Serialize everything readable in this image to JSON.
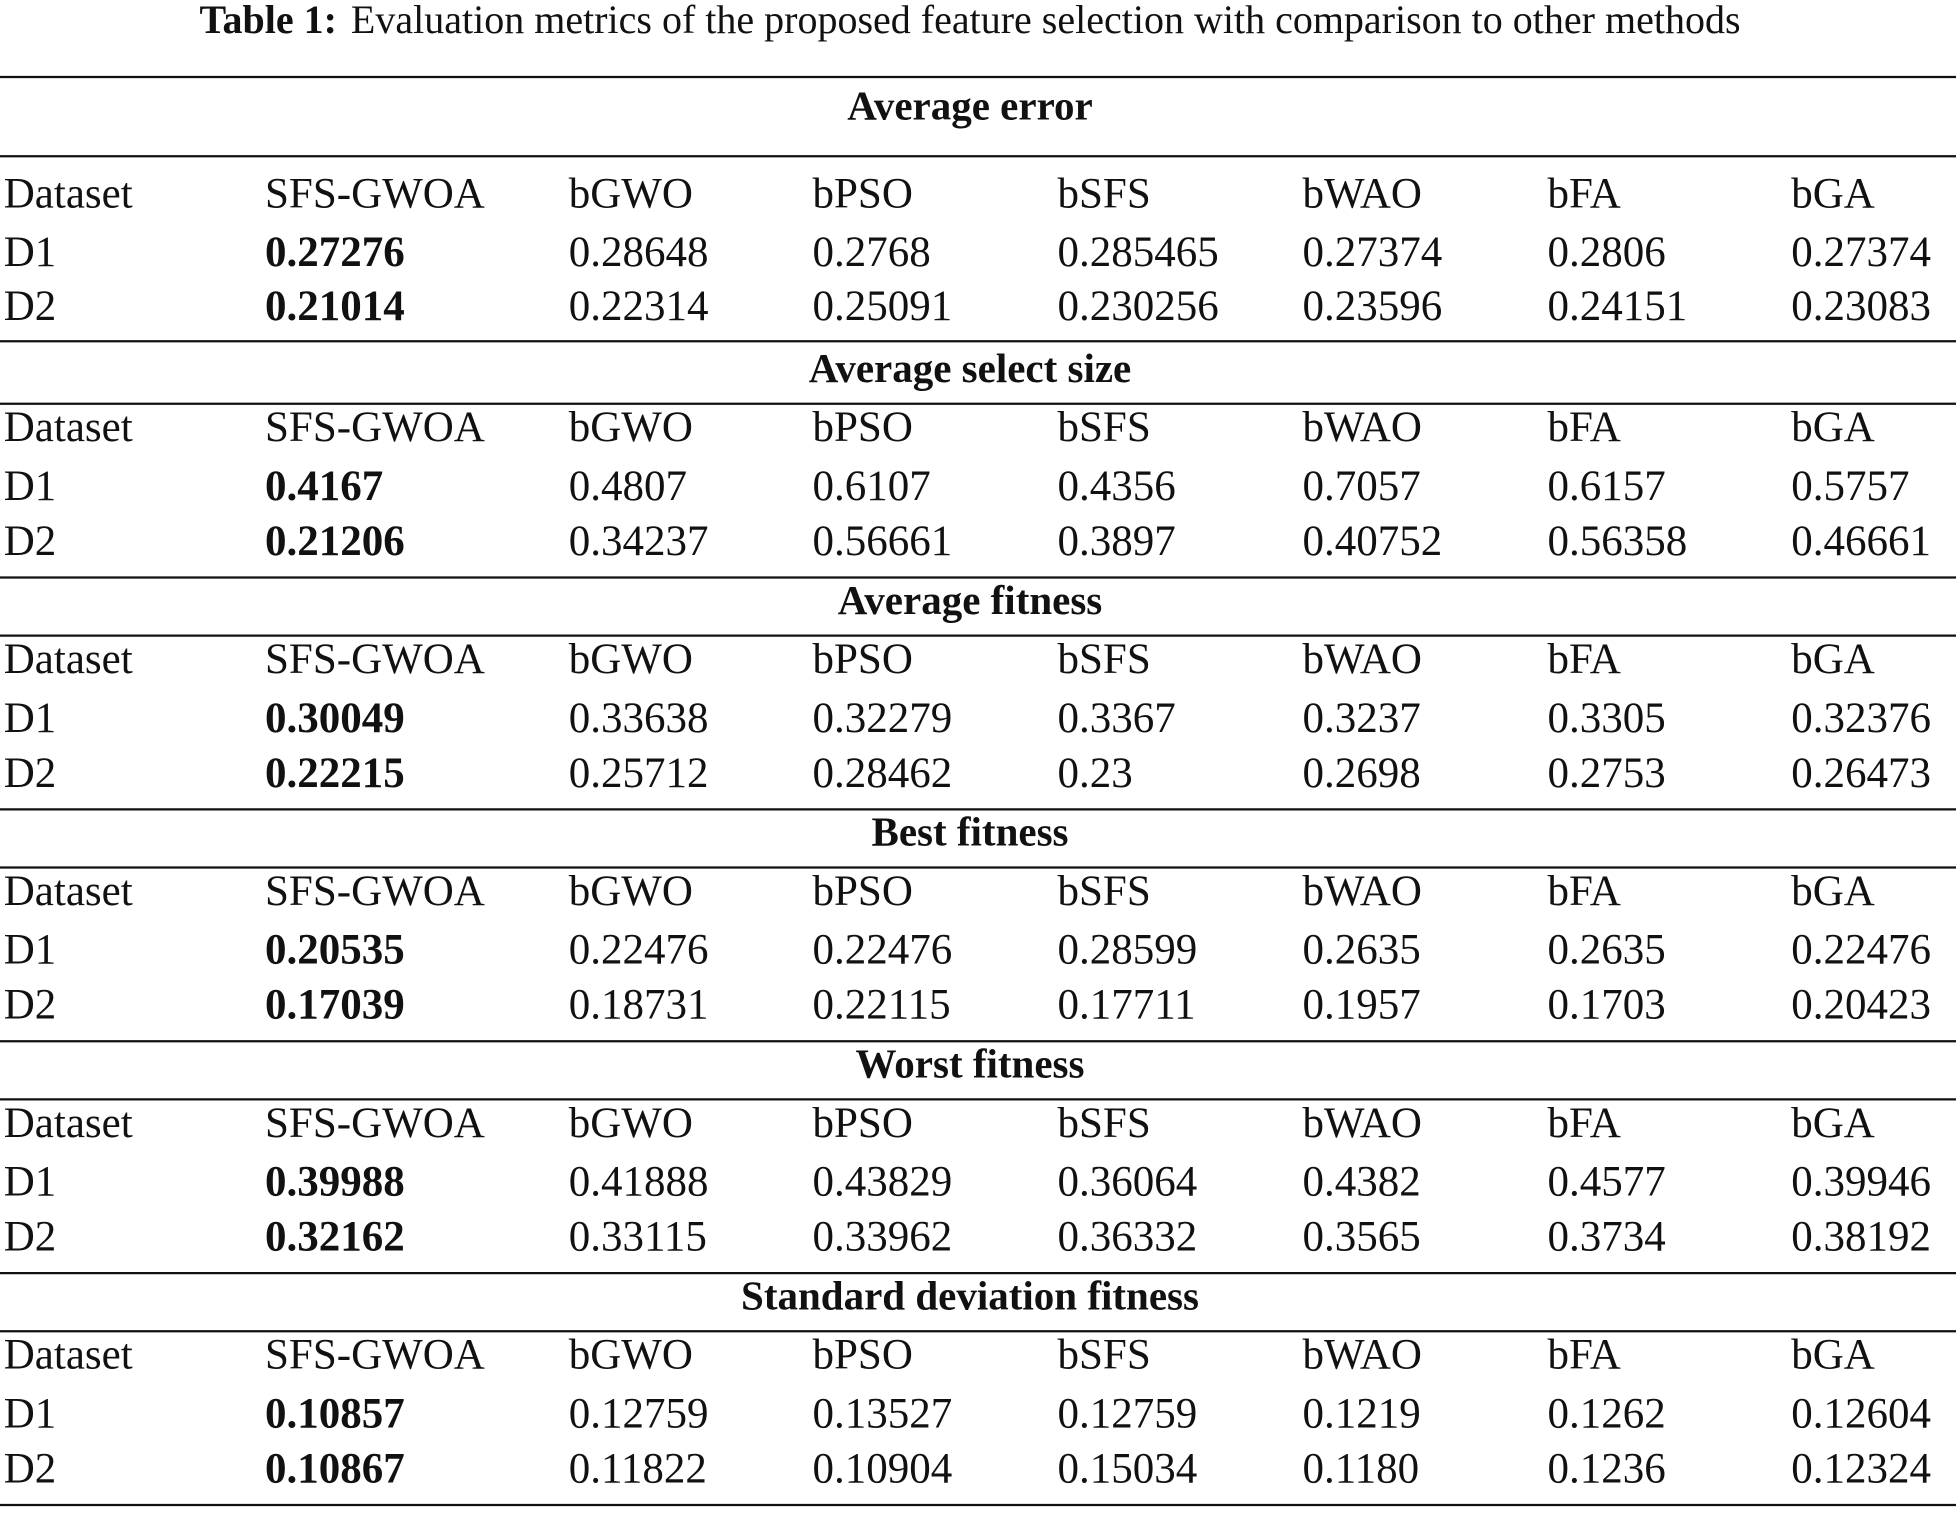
{
  "caption": {
    "label": "Table 1:",
    "text": "Evaluation metrics of the proposed feature selection with comparison to other methods"
  },
  "sections": [
    {
      "title": "Average error",
      "header": [
        "Dataset",
        "SFS-GWOA",
        "bGWO",
        "bPSO",
        "bSFS",
        "bWAO",
        "bFA",
        "bGA"
      ],
      "rows": [
        [
          "D1",
          "0.27276",
          "0.28648",
          "0.2768",
          "0.285465",
          "0.27374",
          "0.2806",
          "0.27374"
        ],
        [
          "D2",
          "0.21014",
          "0.22314",
          "0.25091",
          "0.230256",
          "0.23596",
          "0.24151",
          "0.23083"
        ]
      ]
    },
    {
      "title": "Average select size",
      "header": [
        "Dataset",
        "SFS-GWOA",
        "bGWO",
        "bPSO",
        "bSFS",
        "bWAO",
        "bFA",
        "bGA"
      ],
      "rows": [
        [
          "D1",
          "0.4167",
          "0.4807",
          "0.6107",
          "0.4356",
          "0.7057",
          "0.6157",
          "0.5757"
        ],
        [
          "D2",
          "0.21206",
          "0.34237",
          "0.56661",
          "0.3897",
          "0.40752",
          "0.56358",
          "0.46661"
        ]
      ]
    },
    {
      "title": "Average fitness",
      "header": [
        "Dataset",
        "SFS-GWOA",
        "bGWO",
        "bPSO",
        "bSFS",
        "bWAO",
        "bFA",
        "bGA"
      ],
      "rows": [
        [
          "D1",
          "0.30049",
          "0.33638",
          "0.32279",
          "0.3367",
          "0.3237",
          "0.3305",
          "0.32376"
        ],
        [
          "D2",
          "0.22215",
          "0.25712",
          "0.28462",
          "0.23",
          "0.2698",
          "0.2753",
          "0.26473"
        ]
      ]
    },
    {
      "title": "Best fitness",
      "header": [
        "Dataset",
        "SFS-GWOA",
        "bGWO",
        "bPSO",
        "bSFS",
        "bWAO",
        "bFA",
        "bGA"
      ],
      "rows": [
        [
          "D1",
          "0.20535",
          "0.22476",
          "0.22476",
          "0.28599",
          "0.2635",
          "0.2635",
          "0.22476"
        ],
        [
          "D2",
          "0.17039",
          "0.18731",
          "0.22115",
          "0.17711",
          "0.1957",
          "0.1703",
          "0.20423"
        ]
      ]
    },
    {
      "title": "Worst fitness",
      "header": [
        "Dataset",
        "SFS-GWOA",
        "bGWO",
        "bPSO",
        "bSFS",
        "bWAO",
        "bFA",
        "bGA"
      ],
      "rows": [
        [
          "D1",
          "0.39988",
          "0.41888",
          "0.43829",
          "0.36064",
          "0.4382",
          "0.4577",
          "0.39946"
        ],
        [
          "D2",
          "0.32162",
          "0.33115",
          "0.33962",
          "0.36332",
          "0.3565",
          "0.3734",
          "0.38192"
        ]
      ]
    },
    {
      "title": "Standard deviation fitness",
      "header": [
        "Dataset",
        "SFS-GWOA",
        "bGWO",
        "bPSO",
        "bSFS",
        "bWAO",
        "bFA",
        "bGA"
      ],
      "rows": [
        [
          "D1",
          "0.10857",
          "0.12759",
          "0.13527",
          "0.12759",
          "0.1219",
          "0.1262",
          "0.12604"
        ],
        [
          "D2",
          "0.10867",
          "0.11822",
          "0.10904",
          "0.15034",
          "0.1180",
          "0.1236",
          "0.12324"
        ]
      ]
    }
  ]
}
